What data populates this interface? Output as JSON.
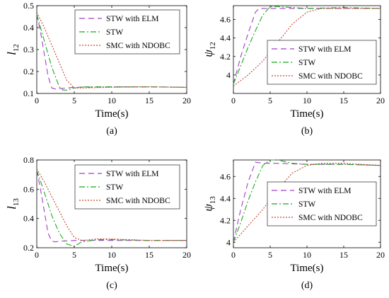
{
  "figure": {
    "legend": [
      "STW with ELM",
      "STW",
      "SMC with NDOBC"
    ],
    "series_colors": [
      "#a23ec8",
      "#1fa81f",
      "#c24a2a"
    ],
    "series_dash": [
      "8,5",
      "8,3,2,3",
      "2,2"
    ]
  },
  "chart_data": [
    {
      "type": "line",
      "panel_label": "(a)",
      "xlabel": "Time(s)",
      "ylabel": "l",
      "ylabel_sub": "12",
      "xlim": [
        0,
        20
      ],
      "ylim": [
        0.1,
        0.5
      ],
      "xticks": [
        "0",
        "5",
        "10",
        "15",
        "20"
      ],
      "yticks": [
        "0.1",
        "0.2",
        "0.3",
        "0.4",
        "0.5"
      ],
      "legend_position": "top-right",
      "series": [
        {
          "name": "STW with ELM",
          "x": [
            0,
            0.5,
            1.0,
            1.5,
            2.0,
            2.5,
            3,
            5,
            10,
            15,
            20
          ],
          "y": [
            0.46,
            0.38,
            0.28,
            0.18,
            0.125,
            0.12,
            0.122,
            0.128,
            0.13,
            0.13,
            0.128
          ]
        },
        {
          "name": "STW",
          "x": [
            0,
            1,
            2,
            3,
            3.5,
            4,
            5,
            6,
            10,
            15,
            20
          ],
          "y": [
            0.46,
            0.34,
            0.22,
            0.13,
            0.115,
            0.115,
            0.125,
            0.13,
            0.13,
            0.13,
            0.128
          ]
        },
        {
          "name": "SMC with NDOBC",
          "x": [
            0,
            1,
            2,
            3,
            4,
            5,
            6,
            10,
            15,
            20
          ],
          "y": [
            0.47,
            0.4,
            0.32,
            0.24,
            0.16,
            0.125,
            0.125,
            0.128,
            0.13,
            0.128
          ]
        }
      ]
    },
    {
      "type": "line",
      "panel_label": "(b)",
      "xlabel": "Time(s)",
      "ylabel": "ψ",
      "ylabel_sub": "12",
      "xlim": [
        0,
        20
      ],
      "ylim": [
        3.8,
        4.75
      ],
      "xticks": [
        "0",
        "5",
        "10",
        "15",
        "20"
      ],
      "yticks": [
        "4",
        "4.2",
        "4.4",
        "4.6"
      ],
      "legend_position": "right",
      "series": [
        {
          "name": "STW with ELM",
          "x": [
            0,
            1,
            2,
            3,
            3.5,
            5,
            10,
            15,
            20
          ],
          "y": [
            3.9,
            4.2,
            4.45,
            4.68,
            4.72,
            4.72,
            4.72,
            4.72,
            4.72
          ]
        },
        {
          "name": "STW",
          "x": [
            0,
            1,
            2,
            3,
            4,
            5,
            6,
            10,
            15,
            20
          ],
          "y": [
            3.9,
            4.1,
            4.3,
            4.48,
            4.65,
            4.74,
            4.74,
            4.72,
            4.73,
            4.72
          ]
        },
        {
          "name": "SMC with NDOBC",
          "x": [
            0,
            2,
            4,
            6,
            8,
            10,
            12,
            15,
            20
          ],
          "y": [
            3.88,
            4.0,
            4.15,
            4.35,
            4.55,
            4.68,
            4.72,
            4.72,
            4.72
          ]
        }
      ]
    },
    {
      "type": "line",
      "panel_label": "(c)",
      "xlabel": "Time(s)",
      "ylabel": "l",
      "ylabel_sub": "13",
      "xlim": [
        0,
        20
      ],
      "ylim": [
        0.2,
        0.8
      ],
      "xticks": [
        "0",
        "5",
        "10",
        "15",
        "20"
      ],
      "yticks": [
        "0.2",
        "0.4",
        "0.6",
        "0.8"
      ],
      "legend_position": "top-right",
      "series": [
        {
          "name": "STW with ELM",
          "x": [
            0,
            0.5,
            1,
            1.5,
            2,
            2.5,
            3,
            5,
            10,
            15,
            20
          ],
          "y": [
            0.73,
            0.6,
            0.45,
            0.3,
            0.245,
            0.24,
            0.245,
            0.25,
            0.25,
            0.25,
            0.25
          ]
        },
        {
          "name": "STW",
          "x": [
            0,
            1,
            2,
            3,
            4,
            5,
            6,
            8,
            10,
            15,
            20
          ],
          "y": [
            0.73,
            0.58,
            0.42,
            0.3,
            0.225,
            0.21,
            0.24,
            0.255,
            0.255,
            0.25,
            0.25
          ]
        },
        {
          "name": "SMC with NDOBC",
          "x": [
            0,
            1,
            2,
            3,
            4,
            5,
            6,
            8,
            10,
            15,
            20
          ],
          "y": [
            0.74,
            0.65,
            0.55,
            0.45,
            0.35,
            0.27,
            0.25,
            0.26,
            0.26,
            0.25,
            0.25
          ]
        }
      ]
    },
    {
      "type": "line",
      "panel_label": "(d)",
      "xlabel": "Time(s)",
      "ylabel": "ψ",
      "ylabel_sub": "13",
      "xlim": [
        0,
        20
      ],
      "ylim": [
        3.95,
        4.75
      ],
      "xticks": [
        "0",
        "5",
        "10",
        "15",
        "20"
      ],
      "yticks": [
        "4",
        "4.2",
        "4.4",
        "4.6"
      ],
      "legend_position": "right",
      "series": [
        {
          "name": "STW with ELM",
          "x": [
            0,
            1,
            2,
            3,
            4,
            6,
            10,
            15,
            20
          ],
          "y": [
            4.0,
            4.3,
            4.55,
            4.73,
            4.72,
            4.72,
            4.71,
            4.71,
            4.7
          ]
        },
        {
          "name": "STW",
          "x": [
            0,
            1,
            2,
            3,
            4,
            5,
            6,
            8,
            10,
            15,
            20
          ],
          "y": [
            4.0,
            4.18,
            4.38,
            4.55,
            4.7,
            4.75,
            4.75,
            4.72,
            4.71,
            4.71,
            4.7
          ]
        },
        {
          "name": "SMC with NDOBC",
          "x": [
            0,
            2,
            4,
            6,
            8,
            10,
            12,
            15,
            20
          ],
          "y": [
            4.0,
            4.15,
            4.3,
            4.48,
            4.63,
            4.7,
            4.72,
            4.72,
            4.7
          ]
        }
      ]
    }
  ]
}
